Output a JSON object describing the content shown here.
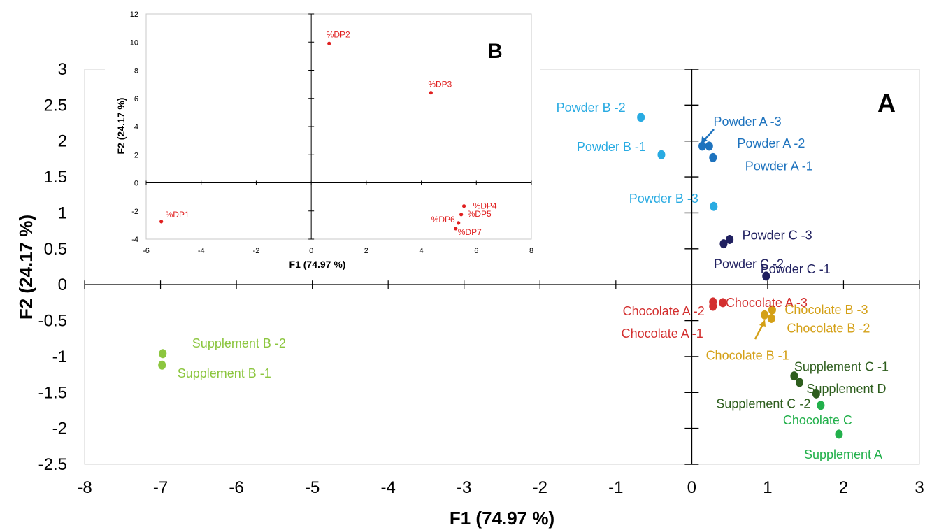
{
  "chart_data": [
    {
      "panel": "A",
      "type": "scatter",
      "xlabel": "F1 (74.97 %)",
      "ylabel": "F2 (24.17 %)",
      "xlim": [
        -8,
        3
      ],
      "ylim": [
        -2.5,
        3
      ],
      "xticks": [
        "-8",
        "-7",
        "-6",
        "-5",
        "-4",
        "-3",
        "-2",
        "-1",
        "0",
        "1",
        "2",
        "3"
      ],
      "yticks": [
        "3",
        "2.5",
        "2",
        "1.5",
        "1",
        "0.5",
        "0",
        "-0.5",
        "-1",
        "-1.5",
        "-2",
        "-2.5"
      ],
      "points": [
        {
          "label": "Powder B -2",
          "x": -0.67,
          "y": 2.33,
          "color": "#29abe2"
        },
        {
          "label": "Powder B -1",
          "x": -0.4,
          "y": 1.81,
          "color": "#29abe2"
        },
        {
          "label": "Powder B -3",
          "x": 0.29,
          "y": 1.09,
          "color": "#29abe2"
        },
        {
          "label": "Powder A -3",
          "x": 0.14,
          "y": 1.93,
          "color": "#1e73be"
        },
        {
          "label": "Powder A -2",
          "x": 0.23,
          "y": 1.93,
          "color": "#1e73be"
        },
        {
          "label": "Powder A -1",
          "x": 0.28,
          "y": 1.77,
          "color": "#1e73be"
        },
        {
          "label": "Powder C -3",
          "x": 0.5,
          "y": 0.63,
          "color": "#202060"
        },
        {
          "label": "Powder C -2",
          "x": 0.42,
          "y": 0.57,
          "color": "#202060"
        },
        {
          "label": "Powder C -1",
          "x": 0.98,
          "y": 0.12,
          "color": "#202060"
        },
        {
          "label": "Chocolate A -2",
          "x": 0.28,
          "y": -0.24,
          "color": "#d32f2f"
        },
        {
          "label": "Chocolate A -1",
          "x": 0.28,
          "y": -0.3,
          "color": "#d32f2f"
        },
        {
          "label": "Chocolate A -3",
          "x": 0.41,
          "y": -0.25,
          "color": "#d32f2f"
        },
        {
          "label": "Chocolate B -3",
          "x": 1.06,
          "y": -0.35,
          "color": "#d4a017"
        },
        {
          "label": "Chocolate B -2",
          "x": 1.05,
          "y": -0.47,
          "color": "#d4a017"
        },
        {
          "label": "Chocolate B -1",
          "x": 0.96,
          "y": -0.42,
          "color": "#d4a017"
        },
        {
          "label": "Supplement B -2",
          "x": -6.97,
          "y": -0.96,
          "color": "#8cc63f"
        },
        {
          "label": "Supplement B -1",
          "x": -6.98,
          "y": -1.12,
          "color": "#8cc63f"
        },
        {
          "label": "Supplement C -1",
          "x": 1.35,
          "y": -1.27,
          "color": "#2e5e1e"
        },
        {
          "label": "Supplement D",
          "x": 1.42,
          "y": -1.36,
          "color": "#2e5e1e"
        },
        {
          "label": "Supplement C -2",
          "x": 1.64,
          "y": -1.52,
          "color": "#2e5e1e"
        },
        {
          "label": "Chocolate C",
          "x": 1.7,
          "y": -1.68,
          "color": "#22b04b"
        },
        {
          "label": "Supplement A",
          "x": 1.94,
          "y": -2.08,
          "color": "#22b04b"
        }
      ]
    },
    {
      "panel": "B",
      "type": "scatter",
      "xlabel": "F1 (74.97 %)",
      "ylabel": "F2 (24.17 %)",
      "xlim": [
        -6,
        8
      ],
      "ylim": [
        -4,
        12
      ],
      "xticks": [
        "-6",
        "-4",
        "-2",
        "0",
        "2",
        "4",
        "6",
        "8"
      ],
      "yticks": [
        "12",
        "10",
        "8",
        "6",
        "4",
        "2",
        "0",
        "-2",
        "-4"
      ],
      "color": "#e02020",
      "points": [
        {
          "label": "%DP1",
          "x": -5.45,
          "y": -2.75
        },
        {
          "label": "%DP2",
          "x": 0.65,
          "y": 9.9
        },
        {
          "label": "%DP3",
          "x": 4.35,
          "y": 6.4
        },
        {
          "label": "%DP4",
          "x": 5.55,
          "y": -1.65
        },
        {
          "label": "%DP5",
          "x": 5.45,
          "y": -2.25
        },
        {
          "label": "%DP6",
          "x": 5.35,
          "y": -2.85
        },
        {
          "label": "%DP7",
          "x": 5.25,
          "y": -3.25
        }
      ]
    }
  ]
}
